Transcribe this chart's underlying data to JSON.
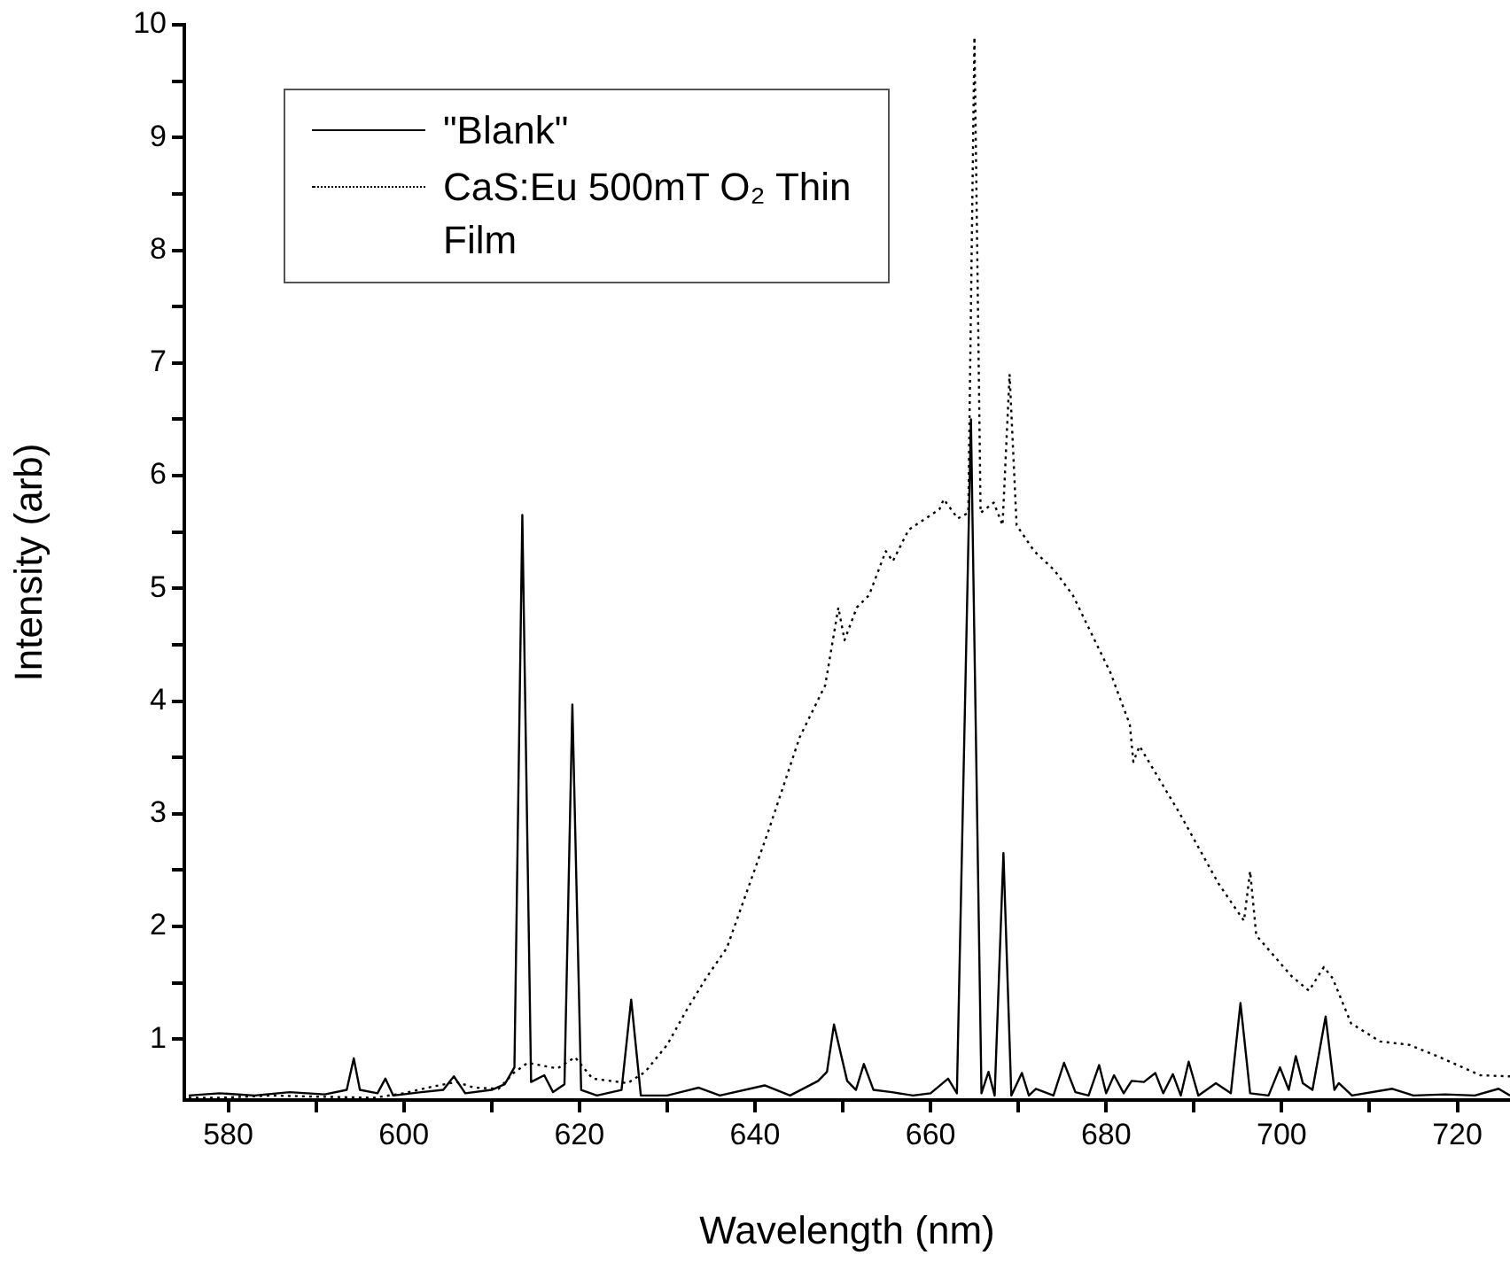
{
  "chart_data": {
    "type": "line",
    "xlabel": "Wavelength (nm)",
    "ylabel": "Intensity (arb)",
    "xlim": [
      575,
      726
    ],
    "xticks": [
      580,
      {
        "value": 590,
        "label": null
      },
      600,
      {
        "value": 610,
        "label": null
      },
      620,
      {
        "value": 630,
        "label": null
      },
      640,
      {
        "value": 650,
        "label": null
      },
      660,
      {
        "value": 670,
        "label": null
      },
      680,
      {
        "value": 690,
        "label": null
      },
      700,
      {
        "value": 710,
        "label": null
      },
      720
    ],
    "ylim": [
      0.46,
      10
    ],
    "yticks": [
      1,
      {
        "value": 1.5,
        "label": null
      },
      2,
      {
        "value": 2.5,
        "label": null
      },
      3,
      {
        "value": 3.5,
        "label": null
      },
      4,
      {
        "value": 4.5,
        "label": null
      },
      5,
      {
        "value": 5.5,
        "label": null
      },
      6,
      {
        "value": 6.5,
        "label": null
      },
      7,
      {
        "value": 7.5,
        "label": null
      },
      8,
      {
        "value": 8.5,
        "label": null
      },
      9,
      {
        "value": 9.5,
        "label": null
      },
      10
    ],
    "grid": false,
    "legend": "top left",
    "marker": "none",
    "series": [
      {
        "name": "\"Blank\"",
        "color": "#000000",
        "line_style": "solid",
        "x": [
          575.5,
          579,
          583,
          587,
          591,
          593.5,
          594.3,
          595,
          597,
          597.9,
          598.8,
          602,
          604.5,
          605.7,
          607,
          610,
          611.5,
          612.6,
          613.5,
          614.5,
          616,
          617,
          618.3,
          619.2,
          620.2,
          622,
          624.8,
          625.9,
          627,
          630,
          633.6,
          636,
          641.1,
          644,
          647.2,
          648.2,
          649,
          650.5,
          651.5,
          652.4,
          653.5,
          655.6,
          658,
          660,
          662,
          663,
          664.6,
          665.8,
          666.6,
          667.3,
          668.3,
          669.2,
          670.4,
          671.2,
          672,
          674,
          675.2,
          676.5,
          678,
          679.2,
          680,
          680.9,
          682,
          682.9,
          684.3,
          685.6,
          686.5,
          687.6,
          688.5,
          689.4,
          690.5,
          692.5,
          694.2,
          695.3,
          696.4,
          698.5,
          699.8,
          700.8,
          701.6,
          702.4,
          703.5,
          705,
          706,
          706.5,
          708,
          712.6,
          715,
          718.6,
          722,
          724.7,
          726
        ],
        "values": [
          0.5,
          0.52,
          0.5,
          0.53,
          0.51,
          0.55,
          0.83,
          0.55,
          0.52,
          0.65,
          0.5,
          0.53,
          0.55,
          0.67,
          0.52,
          0.55,
          0.6,
          0.75,
          5.65,
          0.62,
          0.68,
          0.53,
          0.6,
          3.97,
          0.55,
          0.5,
          0.55,
          1.35,
          0.5,
          0.5,
          0.57,
          0.5,
          0.59,
          0.5,
          0.63,
          0.71,
          1.13,
          0.63,
          0.55,
          0.78,
          0.55,
          0.53,
          0.5,
          0.52,
          0.65,
          0.52,
          6.5,
          0.52,
          0.71,
          0.5,
          2.65,
          0.5,
          0.7,
          0.5,
          0.56,
          0.5,
          0.79,
          0.53,
          0.5,
          0.77,
          0.52,
          0.68,
          0.52,
          0.63,
          0.62,
          0.7,
          0.52,
          0.69,
          0.5,
          0.8,
          0.5,
          0.61,
          0.52,
          1.32,
          0.52,
          0.5,
          0.75,
          0.55,
          0.85,
          0.61,
          0.55,
          1.2,
          0.55,
          0.61,
          0.5,
          0.56,
          0.5,
          0.51,
          0.5,
          0.56,
          0.5
        ]
      },
      {
        "name": "CaS:Eu 500mT O₂ Thin Film",
        "color": "#000000",
        "line_style": "dotted",
        "x": [
          575.5,
          579,
          585,
          590,
          596.6,
          600,
          603.3,
          606,
          608,
          610.8,
          612.5,
          614.1,
          617.5,
          619.5,
          621.5,
          625.5,
          627.5,
          630,
          632.3,
          634.5,
          636.8,
          641.5,
          645.1,
          648,
          649.5,
          650.2,
          651.6,
          653,
          654.9,
          655.7,
          657.5,
          661,
          661.5,
          663.1,
          664.3,
          665,
          665.7,
          667.2,
          668.2,
          669,
          669.8,
          671.8,
          674.1,
          676.2,
          680.5,
          682.7,
          683.1,
          683.8,
          688.4,
          692.8,
          695.7,
          696.4,
          697.1,
          699,
          701.1,
          703.1,
          704.8,
          705.8,
          707.9,
          711.2,
          714.5,
          718,
          722.6,
          726
        ],
        "values": [
          0.48,
          0.48,
          0.5,
          0.49,
          0.48,
          0.52,
          0.58,
          0.62,
          0.57,
          0.56,
          0.7,
          0.79,
          0.74,
          0.84,
          0.65,
          0.61,
          0.71,
          0.95,
          1.27,
          1.55,
          1.81,
          2.84,
          3.68,
          4.14,
          4.83,
          4.54,
          4.83,
          4.94,
          5.33,
          5.24,
          5.52,
          5.7,
          5.79,
          5.62,
          5.67,
          9.89,
          5.67,
          5.76,
          5.56,
          6.9,
          5.56,
          5.33,
          5.16,
          4.94,
          4.25,
          3.79,
          3.46,
          3.6,
          3.0,
          2.38,
          2.05,
          2.49,
          1.92,
          1.75,
          1.56,
          1.43,
          1.64,
          1.54,
          1.14,
          0.98,
          0.95,
          0.84,
          0.68,
          0.67
        ]
      }
    ]
  }
}
